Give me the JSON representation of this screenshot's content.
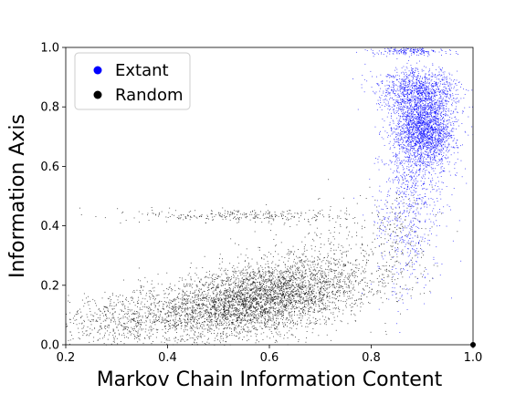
{
  "chart_data": {
    "type": "scatter",
    "title": "",
    "xlabel": "Markov Chain Information Content",
    "ylabel": "Information Axis",
    "xlim": [
      0.2,
      1.0
    ],
    "ylim": [
      0.0,
      1.0
    ],
    "xticks": [
      {
        "value": 0.2,
        "label": "0.2"
      },
      {
        "value": 0.4,
        "label": "0.4"
      },
      {
        "value": 0.6,
        "label": "0.6"
      },
      {
        "value": 0.8,
        "label": "0.8"
      },
      {
        "value": 1.0,
        "label": "1.0"
      }
    ],
    "yticks": [
      {
        "value": 0.0,
        "label": "0.0"
      },
      {
        "value": 0.2,
        "label": "0.2"
      },
      {
        "value": 0.4,
        "label": "0.4"
      },
      {
        "value": 0.6,
        "label": "0.6"
      },
      {
        "value": 0.8,
        "label": "0.8"
      },
      {
        "value": 1.0,
        "label": "1.0"
      }
    ],
    "grid": false,
    "legend": {
      "placement": "top-left",
      "entries": [
        {
          "label": "Extant",
          "color": "#0000ff"
        },
        {
          "label": "Random",
          "color": "#000000"
        }
      ]
    },
    "series": [
      {
        "name": "Random",
        "color": "#000000",
        "clusters": [
          {
            "cx": 0.57,
            "cy": 0.15,
            "sx": 0.11,
            "sy": 0.065,
            "corr": 0.45,
            "weight": 0.78
          },
          {
            "cx": 0.3,
            "cy": 0.09,
            "sx": 0.06,
            "sy": 0.05,
            "corr": 0.2,
            "weight": 0.08
          },
          {
            "cx": 0.55,
            "cy": 0.435,
            "sx": 0.1,
            "sy": 0.012,
            "corr": 0.0,
            "weight": 0.05
          },
          {
            "cx": 0.7,
            "cy": 0.3,
            "sx": 0.08,
            "sy": 0.09,
            "corr": 0.3,
            "weight": 0.06
          },
          {
            "cx": 0.85,
            "cy": 0.35,
            "sx": 0.03,
            "sy": 0.1,
            "corr": 0.0,
            "weight": 0.03
          }
        ],
        "points": [
          [
            1.0,
            0.0
          ]
        ]
      },
      {
        "name": "Extant",
        "color": "#0000ff",
        "clusters": [
          {
            "cx": 0.905,
            "cy": 0.73,
            "sx": 0.03,
            "sy": 0.065,
            "corr": 0.0,
            "weight": 0.55
          },
          {
            "cx": 0.89,
            "cy": 0.86,
            "sx": 0.04,
            "sy": 0.035,
            "corr": 0.0,
            "weight": 0.22
          },
          {
            "cx": 0.88,
            "cy": 0.55,
            "sx": 0.03,
            "sy": 0.1,
            "corr": 0.0,
            "weight": 0.12
          },
          {
            "cx": 0.88,
            "cy": 0.99,
            "sx": 0.035,
            "sy": 0.008,
            "corr": 0.0,
            "weight": 0.05
          },
          {
            "cx": 0.87,
            "cy": 0.35,
            "sx": 0.035,
            "sy": 0.1,
            "corr": 0.0,
            "weight": 0.06
          }
        ]
      }
    ]
  }
}
